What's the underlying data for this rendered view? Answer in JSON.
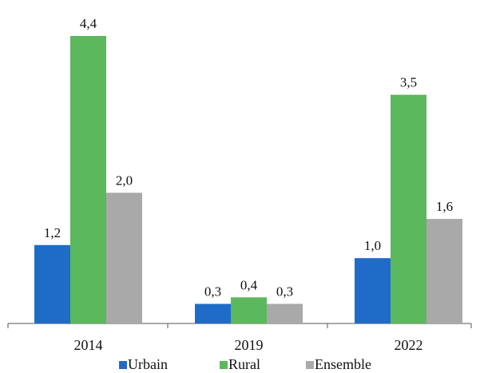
{
  "chart_data": {
    "type": "bar",
    "categories": [
      "2014",
      "2019",
      "2022"
    ],
    "series": [
      {
        "name": "Urbain",
        "values": [
          1.2,
          0.3,
          1.0
        ],
        "labels": [
          "1,2",
          "0,3",
          "1,0"
        ],
        "color": "#1f6cc8"
      },
      {
        "name": "Rural",
        "values": [
          4.4,
          0.4,
          3.5
        ],
        "labels": [
          "4,4",
          "0,4",
          "3,5"
        ],
        "color": "#5cb85c"
      },
      {
        "name": "Ensemble",
        "values": [
          2.0,
          0.3,
          1.6
        ],
        "labels": [
          "2,0",
          "0,3",
          "1,6"
        ],
        "color": "#a9a9a9"
      }
    ],
    "title": "",
    "xlabel": "",
    "ylabel": "",
    "ylim": [
      0,
      4.4
    ],
    "grid": false,
    "legend": "bottom"
  }
}
